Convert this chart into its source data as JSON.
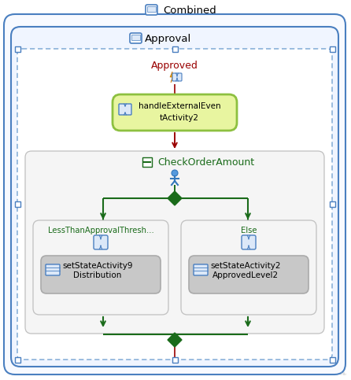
{
  "title": "Combined",
  "bg_color": "#ffffff",
  "approval_label": "Approval",
  "approved_label": "Approved",
  "handle_label1": "handleExternalEven",
  "handle_label2": "tActivity2",
  "check_label": "CheckOrderAmount",
  "left_branch_label": "LessThanApprovalThresh...",
  "left_branch_short1": "setStateActivity9",
  "left_branch_short2": "Distribution",
  "right_branch_label": "Else",
  "right_branch_short1": "setStateActivity2",
  "right_branch_short2": "ApprovedLevel2",
  "dark_green": "#1a6b1a",
  "medium_green": "#1a6b1a",
  "light_green_fill": "#e8f5a0",
  "light_green_border": "#8dc040",
  "gray_fill": "#c8c8c8",
  "gray_border": "#aaaaaa",
  "blue_border": "#4a7fc0",
  "blue_fill": "#dce8f8",
  "red_line": "#9b0000",
  "dotted_border": "#6699cc",
  "outer_bg": "#f8faff",
  "approval_bg": "#f0f5ff",
  "check_bg": "#f5f5f5",
  "branch_bg": "#f5f5f5"
}
